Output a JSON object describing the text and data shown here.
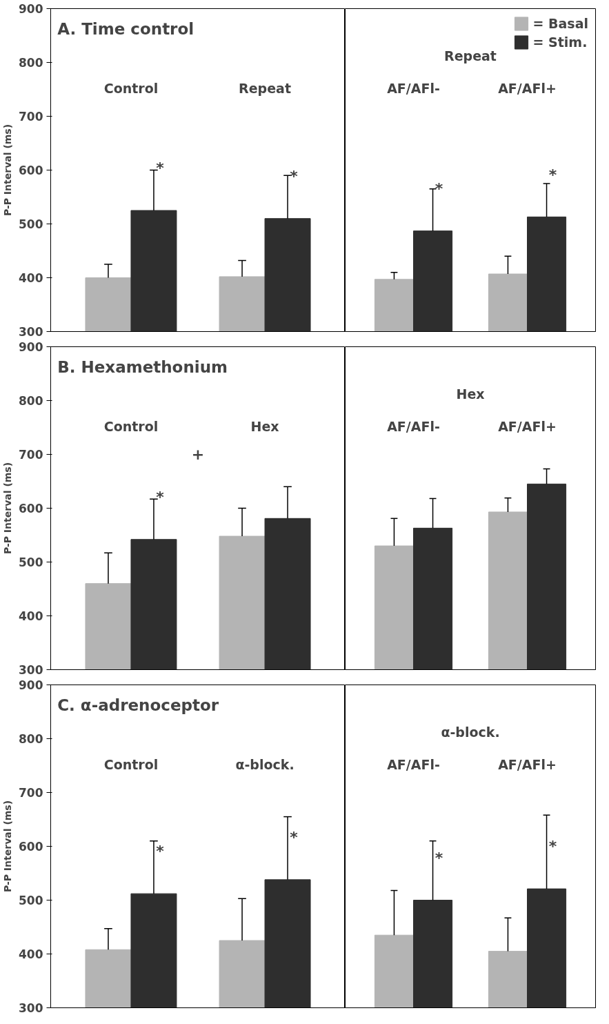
{
  "chart_data": [
    {
      "type": "bar",
      "title": "A. Time control",
      "ylabel": "P-P Interval (ms)",
      "categories": [
        "Control",
        "Repeat"
      ],
      "tick_labels": "y",
      "ylim": [
        300,
        900
      ],
      "yticks": [
        300,
        400,
        500,
        600,
        700,
        800,
        900
      ],
      "series": [
        {
          "color": "#b4b4b4",
          "values": [
            400,
            402
          ],
          "errors": [
            [
              400,
              425
            ],
            [
              402,
              432
            ]
          ]
        },
        {
          "color": "#2e2e2e",
          "values": [
            525,
            510
          ],
          "errors": [
            [
              525,
              600
            ],
            [
              510,
              590
            ]
          ],
          "value_labels": [
            "*",
            "*"
          ]
        }
      ]
    },
    {
      "type": "bar",
      "subtitle": "Repeat",
      "categories": [
        "AF/AFl-",
        "AF/AFl+"
      ],
      "tick_labels": false,
      "ylim": [
        300,
        900
      ],
      "yticks": [
        300,
        400,
        500,
        600,
        700,
        800,
        900
      ],
      "legend": "top right",
      "series": [
        {
          "name": "= Basal",
          "color": "#b4b4b4",
          "values": [
            397,
            407
          ],
          "errors": [
            [
              397,
              410
            ],
            [
              407,
              440
            ]
          ]
        },
        {
          "name": "= Stim.",
          "color": "#2e2e2e",
          "values": [
            487,
            513
          ],
          "errors": [
            [
              487,
              565
            ],
            [
              513,
              575
            ]
          ],
          "value_labels": [
            "*",
            "*"
          ]
        }
      ]
    },
    {
      "type": "bar",
      "title": "B. Hexamethonium",
      "ylabel": "P-P Interval (ms)",
      "categories": [
        "Control",
        "Hex"
      ],
      "tick_labels": "y",
      "ylim": [
        300,
        900
      ],
      "yticks": [
        300,
        400,
        500,
        600,
        700,
        800,
        900
      ],
      "series": [
        {
          "color": "#b4b4b4",
          "values": [
            460,
            548
          ],
          "errors": [
            [
              460,
              517
            ],
            [
              548,
              600
            ]
          ]
        },
        {
          "color": "#2e2e2e",
          "values": [
            542,
            581
          ],
          "errors": [
            [
              542,
              617
            ],
            [
              581,
              640
            ]
          ],
          "value_labels": [
            "*",
            null
          ]
        }
      ],
      "annotations": [
        "+"
      ]
    },
    {
      "type": "bar",
      "subtitle": "Hex",
      "categories": [
        "AF/AFl-",
        "AF/AFl+"
      ],
      "tick_labels": false,
      "ylim": [
        300,
        900
      ],
      "yticks": [
        300,
        400,
        500,
        600,
        700,
        800,
        900
      ],
      "series": [
        {
          "color": "#b4b4b4",
          "values": [
            530,
            593
          ],
          "errors": [
            [
              530,
              581
            ],
            [
              593,
              619
            ]
          ]
        },
        {
          "color": "#2e2e2e",
          "values": [
            563,
            645
          ],
          "errors": [
            [
              563,
              618
            ],
            [
              645,
              673
            ]
          ]
        }
      ]
    },
    {
      "type": "bar",
      "title": "C. α-adrenoceptor",
      "ylabel": "P-P Interval (ms)",
      "categories": [
        "Control",
        "α-block."
      ],
      "tick_labels": "y",
      "ylim": [
        300,
        900
      ],
      "yticks": [
        300,
        400,
        500,
        600,
        700,
        800,
        900
      ],
      "series": [
        {
          "color": "#b4b4b4",
          "values": [
            408,
            425
          ],
          "errors": [
            [
              408,
              447
            ],
            [
              425,
              503
            ]
          ]
        },
        {
          "color": "#2e2e2e",
          "values": [
            512,
            538
          ],
          "errors": [
            [
              512,
              610
            ],
            [
              538,
              655
            ]
          ],
          "value_labels": [
            "*",
            "*"
          ]
        }
      ]
    },
    {
      "type": "bar",
      "subtitle": "α-block.",
      "categories": [
        "AF/AFl-",
        "AF/AFl+"
      ],
      "tick_labels": false,
      "ylim": [
        300,
        900
      ],
      "yticks": [
        300,
        400,
        500,
        600,
        700,
        800,
        900
      ],
      "series": [
        {
          "color": "#b4b4b4",
          "values": [
            435,
            405
          ],
          "errors": [
            [
              435,
              518
            ],
            [
              405,
              467
            ]
          ]
        },
        {
          "color": "#2e2e2e",
          "values": [
            500,
            521
          ],
          "errors": [
            [
              500,
              610
            ],
            [
              521,
              658
            ]
          ],
          "value_labels": [
            "*",
            "*"
          ]
        }
      ]
    }
  ]
}
